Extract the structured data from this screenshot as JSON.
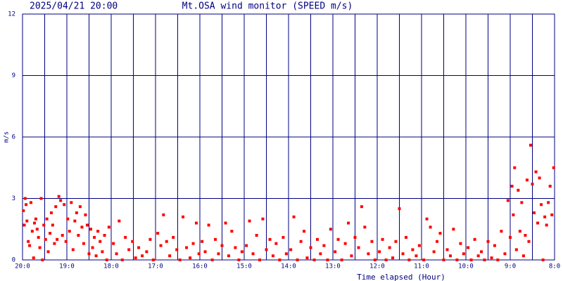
{
  "chart_data": {
    "type": "scatter",
    "title": "Mt.OSA wind monitor (SPEED m/s)",
    "subtitle": "2025/04/21 20:00",
    "y_label": "m/s",
    "x_label": "Time elapsed (Hour)",
    "color": "#ff0000",
    "grid_color": "#000080",
    "xlim": [
      0,
      12
    ],
    "ylim": [
      0,
      12
    ],
    "yticks": [
      0,
      3,
      6,
      9,
      12
    ],
    "xticks": [
      {
        "value": 0,
        "label": "20:0"
      },
      {
        "value": 1,
        "label": "19:0"
      },
      {
        "value": 2,
        "label": "18:0"
      },
      {
        "value": 3,
        "label": "17:0"
      },
      {
        "value": 4,
        "label": "16:0"
      },
      {
        "value": 5,
        "label": "15:0"
      },
      {
        "value": 6,
        "label": "14:0"
      },
      {
        "value": 7,
        "label": "13:0"
      },
      {
        "value": 8,
        "label": "12:0"
      },
      {
        "value": 9,
        "label": "11:0"
      },
      {
        "value": 10,
        "label": "10:0"
      },
      {
        "value": 11,
        "label": "9:0"
      },
      {
        "value": 12,
        "label": "8:0"
      }
    ],
    "xminorticks": [
      0.5,
      1.5,
      2.5,
      3.5,
      4.5,
      5.5,
      6.5,
      7.5,
      8.5,
      9.5,
      10.5,
      11.5
    ],
    "x": [
      0.02,
      0.04,
      0.06,
      0.08,
      0.1,
      0.13,
      0.16,
      0.19,
      0.22,
      0.25,
      0.27,
      0.3,
      0.33,
      0.36,
      0.39,
      0.42,
      0.45,
      0.48,
      0.52,
      0.55,
      0.58,
      0.62,
      0.65,
      0.68,
      0.72,
      0.75,
      0.78,
      0.82,
      0.86,
      0.9,
      0.94,
      0.98,
      1.02,
      1.06,
      1.1,
      1.14,
      1.18,
      1.22,
      1.26,
      1.3,
      1.34,
      1.38,
      1.42,
      1.46,
      1.5,
      1.54,
      1.58,
      1.62,
      1.66,
      1.7,
      1.75,
      1.8,
      1.85,
      1.9,
      1.95,
      2.05,
      2.12,
      2.18,
      2.25,
      2.32,
      2.4,
      2.48,
      2.55,
      2.62,
      2.7,
      2.8,
      2.88,
      2.95,
      3.05,
      3.12,
      3.18,
      3.25,
      3.32,
      3.4,
      3.48,
      3.55,
      3.62,
      3.7,
      3.78,
      3.85,
      3.92,
      3.98,
      4.05,
      4.12,
      4.2,
      4.28,
      4.35,
      4.42,
      4.5,
      4.58,
      4.65,
      4.72,
      4.8,
      4.88,
      4.95,
      5.05,
      5.12,
      5.2,
      5.28,
      5.35,
      5.42,
      5.5,
      5.58,
      5.65,
      5.72,
      5.8,
      5.88,
      5.95,
      6.05,
      6.12,
      6.2,
      6.28,
      6.35,
      6.42,
      6.5,
      6.58,
      6.65,
      6.72,
      6.8,
      6.88,
      6.95,
      7.05,
      7.12,
      7.2,
      7.28,
      7.35,
      7.42,
      7.5,
      7.58,
      7.65,
      7.72,
      7.8,
      7.88,
      7.95,
      8.05,
      8.12,
      8.2,
      8.28,
      8.35,
      8.42,
      8.5,
      8.58,
      8.65,
      8.72,
      8.8,
      8.88,
      8.95,
      9.05,
      9.12,
      9.2,
      9.28,
      9.35,
      9.42,
      9.5,
      9.58,
      9.65,
      9.72,
      9.8,
      9.88,
      9.95,
      10.05,
      10.12,
      10.2,
      10.28,
      10.35,
      10.42,
      10.5,
      10.58,
      10.65,
      10.72,
      10.8,
      10.88,
      10.95,
      11.0,
      11.04,
      11.07,
      11.1,
      11.14,
      11.18,
      11.22,
      11.26,
      11.3,
      11.34,
      11.38,
      11.42,
      11.46,
      11.5,
      11.54,
      11.58,
      11.62,
      11.66,
      11.7,
      11.74,
      11.78,
      11.82,
      11.86,
      11.9,
      11.94,
      11.98
    ],
    "values": [
      2.4,
      1.7,
      3.0,
      2.7,
      1.9,
      0.9,
      0.7,
      2.8,
      1.4,
      0.1,
      1.8,
      2.0,
      1.5,
      1.1,
      0.6,
      3.0,
      0.0,
      1.7,
      1.0,
      2.0,
      0.4,
      1.3,
      2.3,
      1.7,
      0.8,
      2.6,
      1.0,
      3.1,
      2.9,
      1.2,
      2.7,
      0.9,
      2.0,
      1.4,
      2.8,
      0.5,
      1.9,
      2.3,
      1.2,
      2.6,
      1.6,
      0.8,
      2.2,
      1.7,
      0.3,
      1.5,
      0.6,
      1.1,
      0.2,
      1.4,
      0.9,
      0.4,
      1.2,
      0.0,
      1.6,
      0.8,
      0.3,
      1.9,
      0.0,
      1.1,
      0.5,
      0.9,
      0.1,
      0.6,
      0.2,
      0.4,
      1.0,
      0.0,
      1.3,
      0.7,
      2.2,
      0.9,
      0.2,
      1.1,
      0.5,
      0.0,
      2.1,
      0.6,
      0.1,
      0.8,
      1.8,
      0.3,
      0.9,
      0.4,
      1.7,
      0.0,
      1.0,
      0.3,
      0.7,
      1.8,
      0.2,
      1.4,
      0.6,
      0.0,
      0.4,
      0.7,
      1.9,
      0.3,
      1.2,
      0.0,
      2.0,
      0.5,
      1.0,
      0.2,
      0.8,
      0.0,
      1.1,
      0.3,
      0.5,
      2.1,
      0.0,
      0.9,
      1.4,
      0.1,
      0.6,
      0.0,
      1.0,
      0.3,
      0.7,
      0.0,
      1.5,
      0.4,
      1.0,
      0.0,
      0.8,
      1.8,
      0.2,
      1.1,
      0.6,
      2.6,
      1.6,
      0.3,
      0.9,
      0.0,
      0.4,
      1.0,
      0.0,
      0.6,
      0.1,
      0.9,
      2.5,
      0.3,
      1.1,
      0.0,
      0.5,
      0.2,
      0.7,
      0.0,
      2.0,
      1.6,
      0.4,
      0.9,
      1.3,
      0.0,
      0.5,
      0.2,
      1.5,
      0.0,
      0.8,
      0.3,
      0.6,
      0.0,
      1.0,
      0.2,
      0.4,
      0.0,
      0.9,
      0.1,
      0.7,
      0.0,
      1.4,
      0.3,
      2.9,
      1.1,
      3.6,
      2.2,
      4.5,
      0.5,
      3.4,
      1.4,
      2.8,
      0.2,
      1.2,
      3.9,
      0.9,
      5.6,
      3.7,
      2.3,
      4.3,
      1.8,
      4.0,
      2.7,
      0.0,
      2.1,
      1.7,
      2.8,
      3.6,
      2.2,
      4.5
    ]
  }
}
